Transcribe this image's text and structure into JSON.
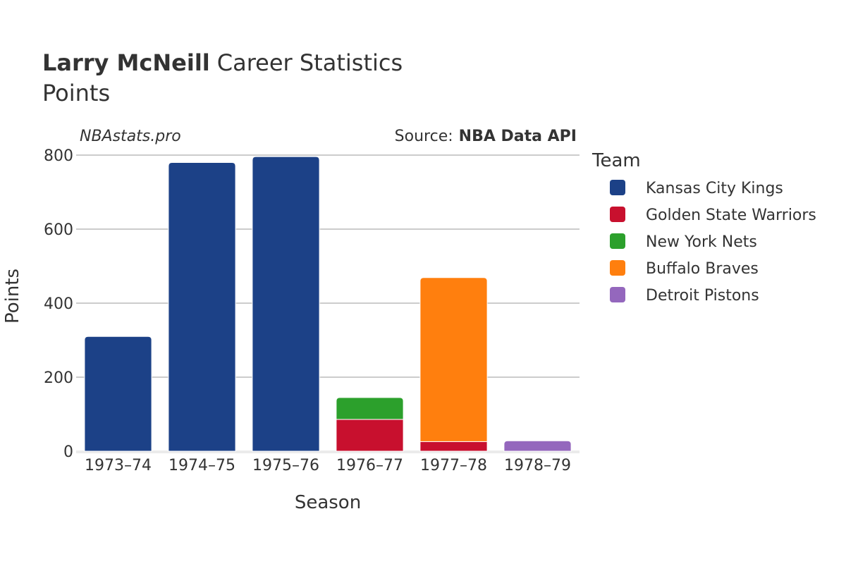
{
  "header": {
    "title_bold": "Larry McNeill",
    "title_rest": "Career Statistics",
    "subtitle": "Points",
    "credit_left": "NBAstats.pro",
    "credit_source_label": "Source:",
    "credit_source_name": "NBA Data API"
  },
  "legend": {
    "title": "Team"
  },
  "chart_data": {
    "type": "bar",
    "stacked": true,
    "xlabel": "Season",
    "ylabel": "Points",
    "ylim": [
      0,
      800
    ],
    "yticks": [
      0,
      200,
      400,
      600,
      800
    ],
    "grid": true,
    "legend_position": "right",
    "categories": [
      "1973–74",
      "1974–75",
      "1975–76",
      "1976–77",
      "1977–78",
      "1978–79"
    ],
    "series": [
      {
        "name": "Kansas City Kings",
        "color": "#1c4187",
        "values": [
          310,
          780,
          796,
          0,
          0,
          0
        ]
      },
      {
        "name": "Golden State Warriors",
        "color": "#c8102e",
        "values": [
          0,
          0,
          0,
          86,
          26,
          0
        ]
      },
      {
        "name": "New York Nets",
        "color": "#2ca02c",
        "values": [
          0,
          0,
          0,
          59,
          0,
          0
        ]
      },
      {
        "name": "Buffalo Braves",
        "color": "#ff7f0e",
        "values": [
          0,
          0,
          0,
          0,
          443,
          0
        ]
      },
      {
        "name": "Detroit Pistons",
        "color": "#9467bd",
        "values": [
          0,
          0,
          0,
          0,
          0,
          28
        ]
      }
    ]
  }
}
